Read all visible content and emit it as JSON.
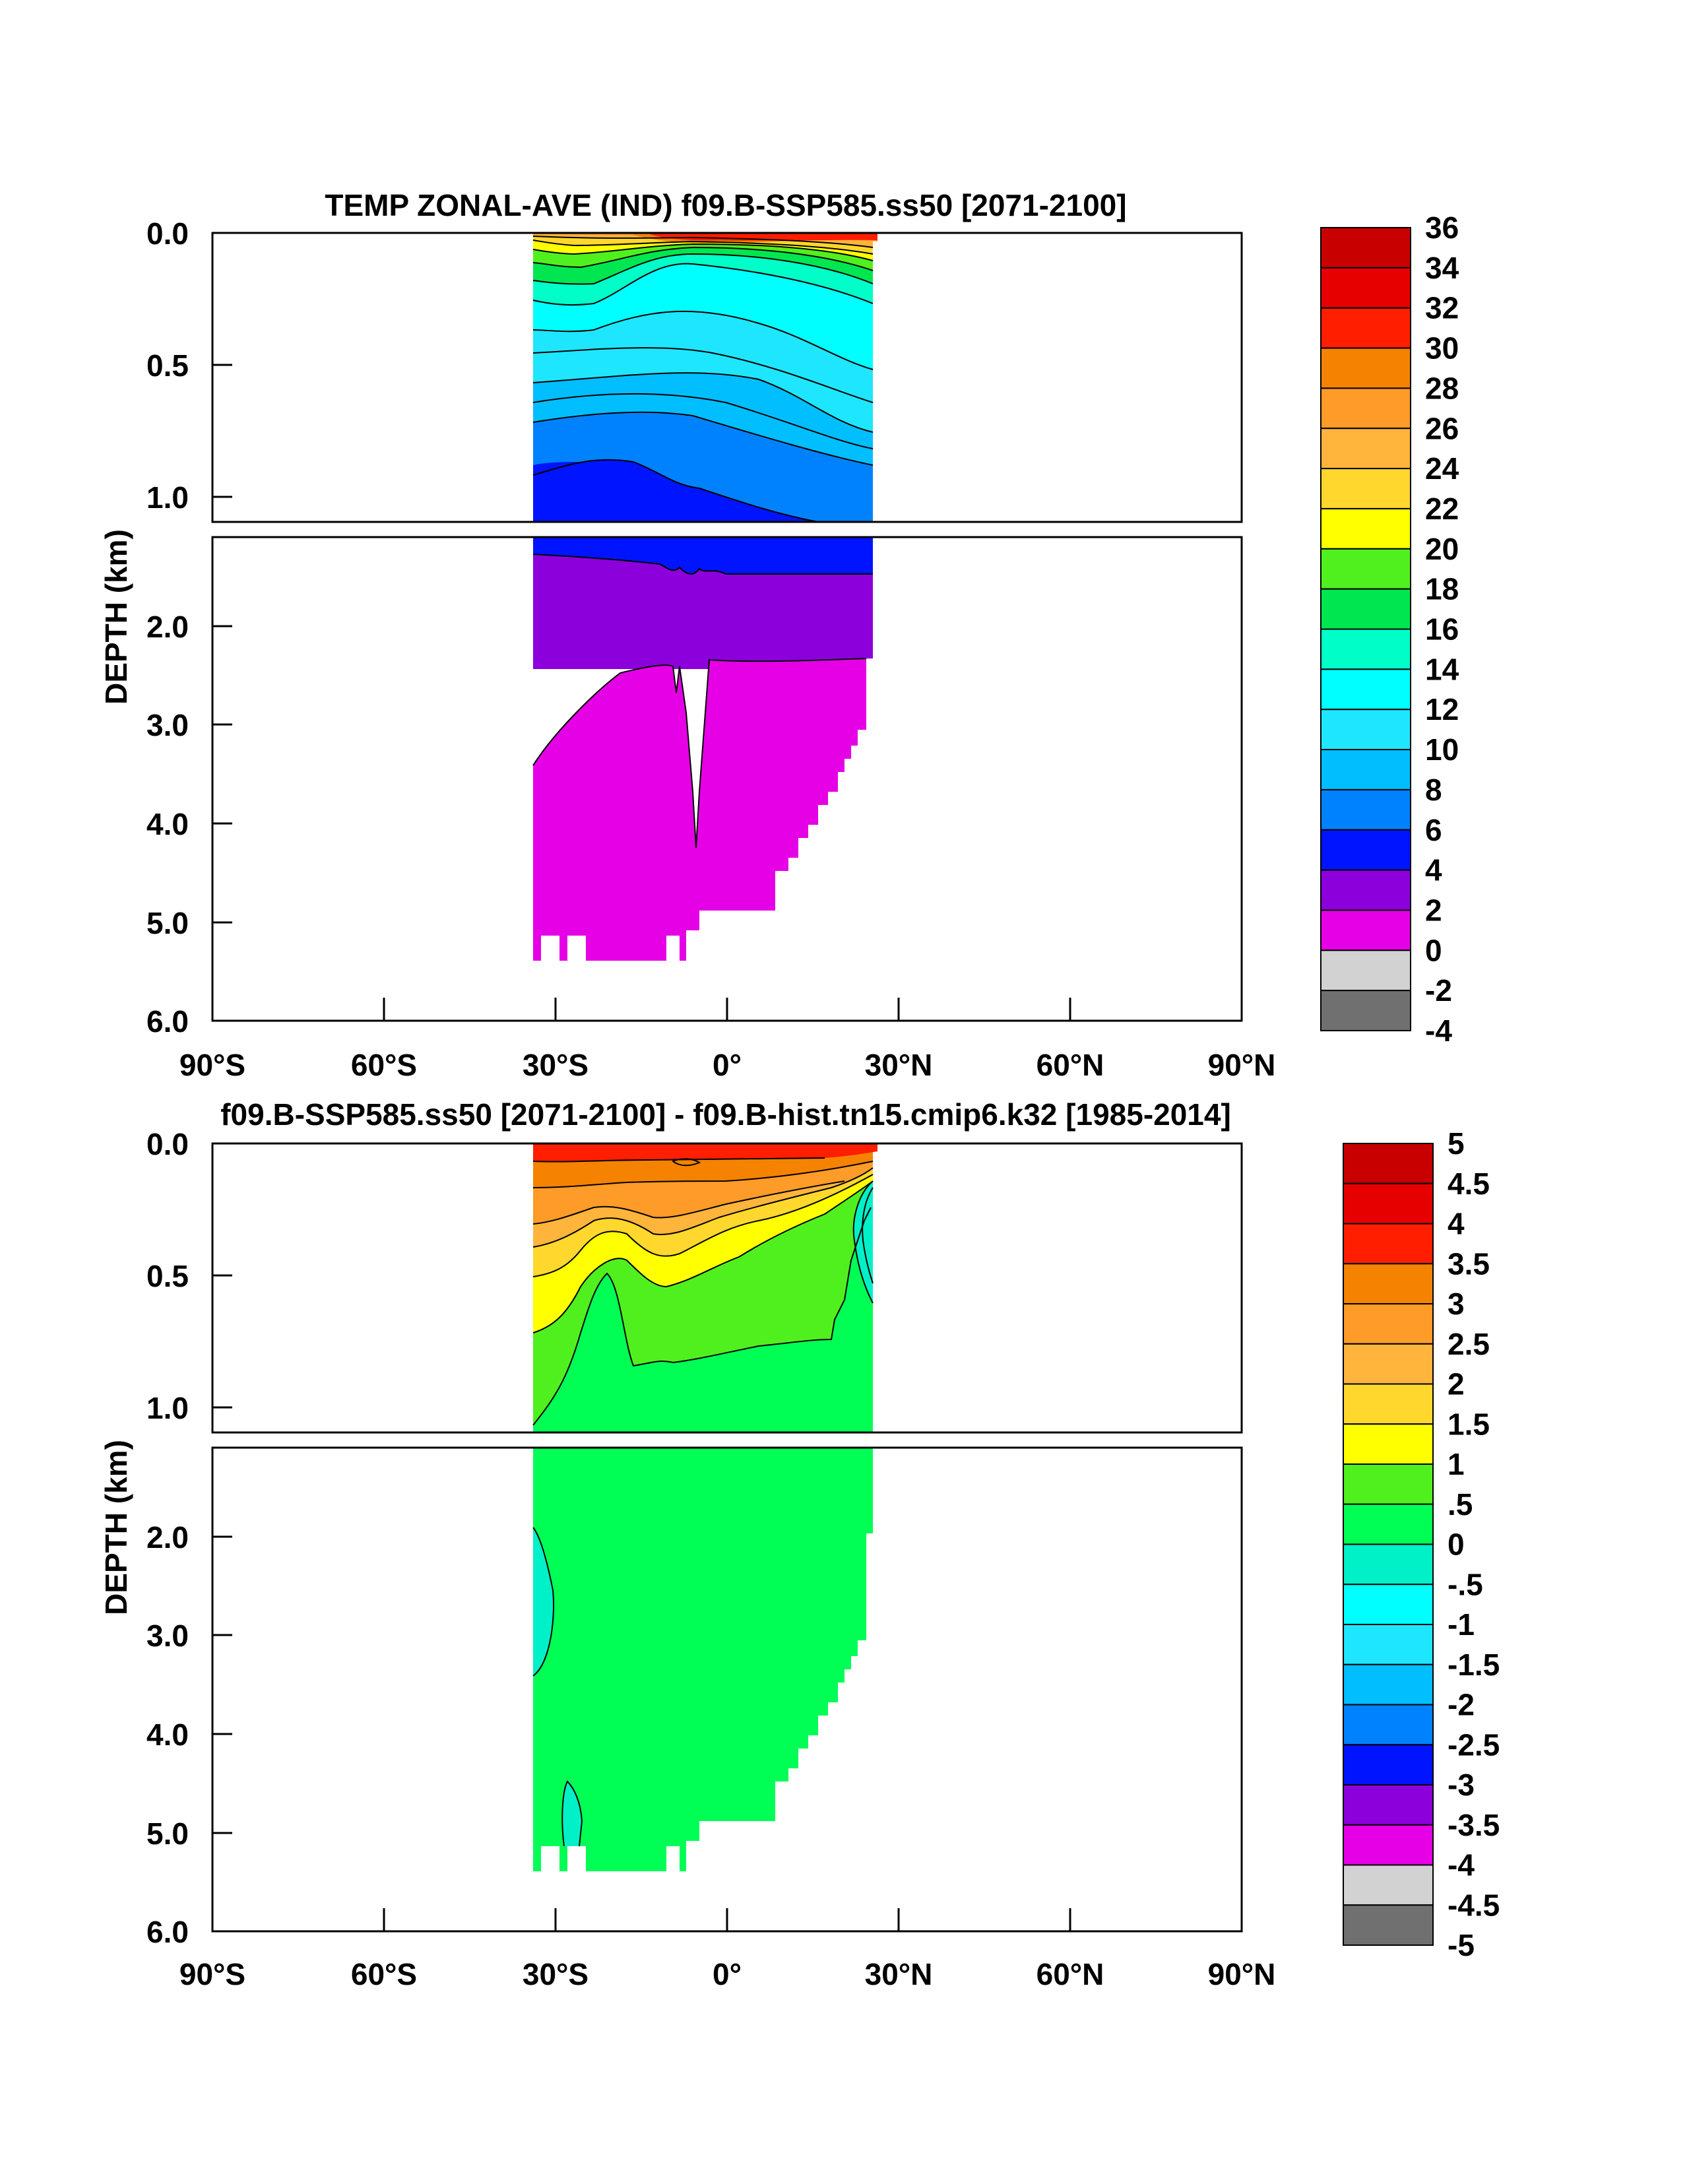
{
  "chart_data": [
    {
      "type": "heatmap",
      "title": "TEMP ZONAL-AVE (IND) f09.B-SSP585.ss50 [2071-2100]",
      "ylabel": "DEPTH (km)",
      "xlabel": "",
      "x_range": [
        -90,
        90
      ],
      "y_range_km": [
        0,
        6
      ],
      "upper_panel_range_km": [
        0,
        1.1
      ],
      "lower_panel_range_km": [
        1.1,
        6
      ],
      "upper_ticks": [
        "0.0",
        "0.5",
        "1.0"
      ],
      "lower_ticks": [
        "2.0",
        "3.0",
        "4.0",
        "5.0",
        "6.0"
      ],
      "x_ticks": [
        "90°S",
        "60°S",
        "30°S",
        "0°",
        "30°N",
        "60°N",
        "90°N"
      ],
      "colorbar_labels": [
        "36",
        "34",
        "32",
        "30",
        "28",
        "26",
        "24",
        "22",
        "20",
        "18",
        "16",
        "14",
        "12",
        "10",
        "8",
        "6",
        "4",
        "2",
        "0",
        "-2",
        "-4"
      ],
      "colors": [
        "#c80000",
        "#e60000",
        "#ff1e00",
        "#f58200",
        "#ff9b28",
        "#ffb43c",
        "#ffd72d",
        "#ffff00",
        "#50f01e",
        "#00e650",
        "#00ffc8",
        "#00ffff",
        "#1ee6ff",
        "#00beff",
        "#0082ff",
        "#0014ff",
        "#8c00dc",
        "#e600e6",
        "#d2d2d2",
        "#707070"
      ],
      "data_extent_lat": [
        -34,
        25
      ]
    },
    {
      "type": "heatmap",
      "title": "f09.B-SSP585.ss50 [2071-2100] - f09.B-hist.tn15.cmip6.k32 [1985-2014]",
      "ylabel": "DEPTH (km)",
      "xlabel": "",
      "x_range": [
        -90,
        90
      ],
      "y_range_km": [
        0,
        6
      ],
      "upper_ticks": [
        "0.0",
        "0.5",
        "1.0"
      ],
      "lower_ticks": [
        "2.0",
        "3.0",
        "4.0",
        "5.0",
        "6.0"
      ],
      "x_ticks": [
        "90°S",
        "60°S",
        "30°S",
        "0°",
        "30°N",
        "60°N",
        "90°N"
      ],
      "colorbar_labels": [
        "5",
        "4.5",
        "4",
        "3.5",
        "3",
        "2.5",
        "2",
        "1.5",
        "1",
        ".5",
        "0",
        "-.5",
        "-1",
        "-1.5",
        "-2",
        "-2.5",
        "-3",
        "-3.5",
        "-4",
        "-4.5",
        "-5"
      ],
      "colors": [
        "#c80000",
        "#e60000",
        "#ff1e00",
        "#f58200",
        "#ff9b28",
        "#ffb43c",
        "#ffd72d",
        "#ffff00",
        "#50f01e",
        "#00ff55",
        "#00f0c8",
        "#00ffff",
        "#1ee6ff",
        "#00beff",
        "#0082ff",
        "#0014ff",
        "#8c00dc",
        "#e600e6",
        "#d2d2d2",
        "#707070"
      ],
      "data_extent_lat": [
        -34,
        25
      ]
    }
  ]
}
